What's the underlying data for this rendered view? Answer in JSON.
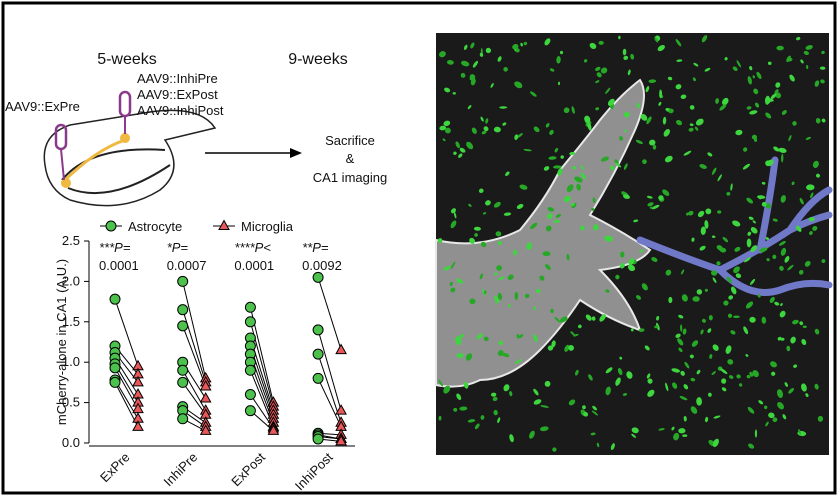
{
  "diagram": {
    "left_timepoint": "5-weeks",
    "right_timepoint": "9-weeks",
    "left_injection": "AAV9::ExPre",
    "right_injections": [
      "AAV9::InhiPre",
      "AAV9::ExPost",
      "AAV9::InhiPost"
    ],
    "outcome": [
      "Sacrifice",
      "&",
      "CA1 imaging"
    ]
  },
  "chart_data": {
    "type": "paired-dot",
    "ylabel": "mCherry-alone in CA1 (A.U.)",
    "categories": [
      "ExPre",
      "InhiPre",
      "ExPost",
      "InhiPost"
    ],
    "annotations": [
      [
        "***P=",
        "0.0001"
      ],
      [
        "*P=",
        "0.0007"
      ],
      [
        "****P<",
        "0.0001"
      ],
      [
        "**P=",
        "0.0092"
      ]
    ],
    "series": [
      {
        "name": "Astrocyte",
        "color": "#4cc24c",
        "marker": "circle",
        "values": [
          [
            1.78,
            1.2,
            1.12,
            1.05,
            0.98,
            0.93,
            0.78,
            0.75
          ],
          [
            2.0,
            1.65,
            1.45,
            1.0,
            0.9,
            0.75,
            0.45,
            0.4,
            0.3
          ],
          [
            1.68,
            1.5,
            1.3,
            1.2,
            1.1,
            1.0,
            0.9,
            0.6,
            0.4
          ],
          [
            2.05,
            1.4,
            1.1,
            0.8,
            0.12,
            0.1,
            0.08,
            0.05
          ]
        ]
      },
      {
        "name": "Microglia",
        "color": "#e8575a",
        "marker": "triangle",
        "values": [
          [
            0.95,
            0.85,
            0.75,
            0.6,
            0.5,
            0.42,
            0.3,
            0.2
          ],
          [
            0.8,
            0.75,
            0.7,
            0.55,
            0.4,
            0.35,
            0.25,
            0.2,
            0.15
          ],
          [
            0.5,
            0.45,
            0.4,
            0.35,
            0.3,
            0.25,
            0.2,
            0.18,
            0.15
          ],
          [
            1.15,
            0.4,
            0.25,
            0.2,
            0.1,
            0.05,
            0.05,
            0.02
          ]
        ]
      }
    ],
    "ylim": [
      0,
      2.5
    ],
    "yticks": [
      {
        "value": 0,
        "label": "0.0"
      },
      0.5,
      {
        "value": 1,
        "label": "1.0"
      },
      1.5,
      {
        "value": 2,
        "label": "2.0"
      },
      2.5
    ]
  }
}
